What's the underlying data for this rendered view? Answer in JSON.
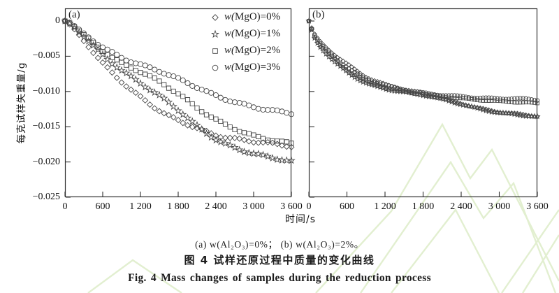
{
  "figure": {
    "panel_a_label": "(a)",
    "panel_b_label": "(b)",
    "captions": {
      "sub": "(a) w(Al₂O₃)=0%；  (b) w(Al₂O₃)=2%。",
      "zh": "图 4  试样还原过程中质量的变化曲线",
      "en": "Fig. 4  Mass changes of samples during the reduction process"
    }
  },
  "axes": {
    "x_label": "时间/s",
    "y_label": "每克试样失重量/g",
    "x_tick_labels": [
      "0",
      "600",
      "1 200",
      "1 800",
      "2 400",
      "3 000",
      "3 600"
    ],
    "x_tick_values": [
      0,
      600,
      1200,
      1800,
      2400,
      3000,
      3600
    ],
    "y_tick_labels": [
      "0",
      "−0.005",
      "−0.010",
      "−0.015",
      "−0.020",
      "−0.025"
    ],
    "y_tick_values": [
      0,
      -0.005,
      -0.01,
      -0.015,
      -0.02,
      -0.025
    ],
    "x_range": [
      0,
      3600
    ],
    "y_range": [
      -0.025,
      0.00179
    ],
    "grid": false
  },
  "legend": {
    "position": "upper-right of panel (a)",
    "items": [
      {
        "marker": "diamond",
        "label": "w(MgO)=0%"
      },
      {
        "marker": "star",
        "label": "w(MgO)=1%"
      },
      {
        "marker": "square",
        "label": "w(MgO)=2%"
      },
      {
        "marker": "circle",
        "label": "w(MgO)=3%"
      }
    ]
  },
  "chart_data": [
    {
      "panel": "a",
      "type": "scatter",
      "subtitle": "(a) w(Al₂O₃)=0%",
      "xlabel": "时间/s",
      "ylabel": "每克试样失重量/g",
      "marker_step_s": 75,
      "x_anchor": [
        0,
        100,
        300,
        600,
        900,
        1200,
        1500,
        1800,
        2100,
        2400,
        2700,
        3000,
        3300,
        3600
      ],
      "series": [
        {
          "name": "w(MgO)=0%",
          "marker": "diamond",
          "y": [
            0,
            -0.0007,
            -0.0028,
            -0.006,
            -0.0086,
            -0.0108,
            -0.0127,
            -0.0141,
            -0.0152,
            -0.0162,
            -0.0167,
            -0.0171,
            -0.0174,
            -0.0178
          ]
        },
        {
          "name": "w(MgO)=1%",
          "marker": "star",
          "y": [
            0,
            -0.0005,
            -0.0022,
            -0.0048,
            -0.007,
            -0.0088,
            -0.0106,
            -0.0126,
            -0.0149,
            -0.0168,
            -0.018,
            -0.0188,
            -0.0194,
            -0.0199
          ]
        },
        {
          "name": "w(MgO)=2%",
          "marker": "square",
          "y": [
            0,
            -0.0004,
            -0.002,
            -0.0042,
            -0.006,
            -0.0072,
            -0.0086,
            -0.0103,
            -0.0123,
            -0.014,
            -0.0153,
            -0.0163,
            -0.0169,
            -0.0174
          ]
        },
        {
          "name": "w(MgO)=3%",
          "marker": "circle",
          "y": [
            0,
            -0.0004,
            -0.0018,
            -0.0037,
            -0.0052,
            -0.0062,
            -0.0071,
            -0.0082,
            -0.0094,
            -0.0106,
            -0.0115,
            -0.0122,
            -0.0127,
            -0.0131
          ]
        }
      ]
    },
    {
      "panel": "b",
      "type": "scatter",
      "subtitle": "(b) w(Al₂O₃)=2%",
      "xlabel": "时间/s",
      "ylabel": "每克试样失重量/g",
      "marker_step_s": 45,
      "x_anchor": [
        0,
        100,
        300,
        600,
        900,
        1200,
        1500,
        1800,
        2100,
        2400,
        2700,
        3000,
        3300,
        3600
      ],
      "series": [
        {
          "name": "w(MgO)=0%",
          "marker": "diamond",
          "y": [
            0,
            -0.002,
            -0.004,
            -0.0061,
            -0.0079,
            -0.009,
            -0.0097,
            -0.0103,
            -0.011,
            -0.0117,
            -0.0124,
            -0.0129,
            -0.0132,
            -0.0135
          ]
        },
        {
          "name": "w(MgO)=1%",
          "marker": "star",
          "y": [
            0,
            -0.0026,
            -0.0049,
            -0.0072,
            -0.0088,
            -0.0096,
            -0.0101,
            -0.0105,
            -0.0111,
            -0.0118,
            -0.0125,
            -0.013,
            -0.0133,
            -0.0136
          ]
        },
        {
          "name": "w(MgO)=2%",
          "marker": "square",
          "y": [
            0,
            -0.0024,
            -0.0046,
            -0.0069,
            -0.0085,
            -0.0094,
            -0.01,
            -0.0104,
            -0.0107,
            -0.011,
            -0.0112,
            -0.0114,
            -0.0115,
            -0.0117
          ]
        },
        {
          "name": "w(MgO)=3%",
          "marker": "circle",
          "y": [
            0,
            -0.0022,
            -0.0043,
            -0.0066,
            -0.0082,
            -0.0091,
            -0.0097,
            -0.0102,
            -0.0105,
            -0.0107,
            -0.0109,
            -0.011,
            -0.011,
            -0.0112
          ]
        }
      ]
    }
  ]
}
